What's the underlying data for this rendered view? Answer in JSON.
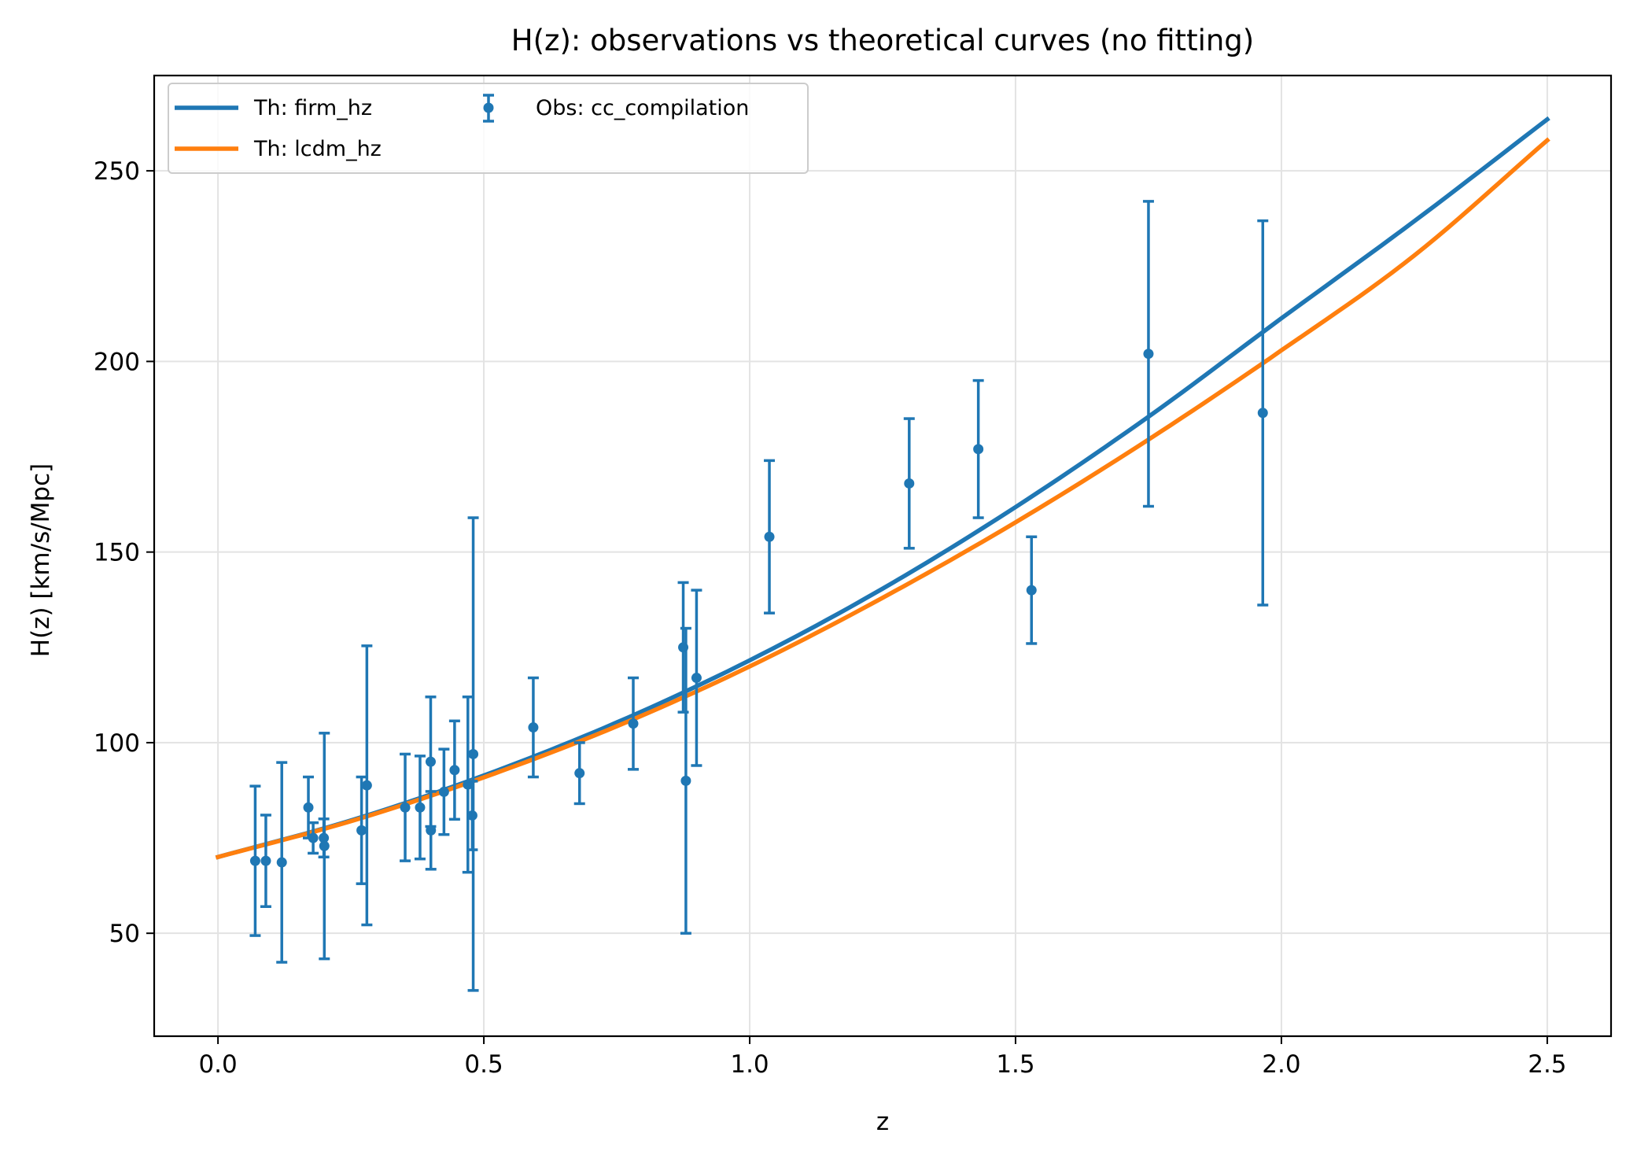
{
  "chart_data": {
    "type": "line",
    "title": "H(z): observations vs theoretical curves (no fitting)",
    "xlabel": "z",
    "ylabel": "H(z) [km/s/Mpc]",
    "xlim": [
      -0.12,
      2.62
    ],
    "ylim": [
      23,
      275
    ],
    "xticks": [
      0.0,
      0.5,
      1.0,
      1.5,
      2.0,
      2.5
    ],
    "xtick_labels": [
      "0.0",
      "0.5",
      "1.0",
      "1.5",
      "2.0",
      "2.5"
    ],
    "yticks": [
      50,
      100,
      150,
      200,
      250
    ],
    "ytick_labels": [
      "50",
      "100",
      "150",
      "200",
      "250"
    ],
    "grid": true,
    "legend_placement": "top-left",
    "series": [
      {
        "name": "Th: firm_hz",
        "kind": "line",
        "color": "#1f77b4",
        "x": [
          0.0,
          0.25,
          0.5,
          0.75,
          1.0,
          1.25,
          1.5,
          1.75,
          2.0,
          2.25,
          2.5
        ],
        "y": [
          70.0,
          79.6,
          91.4,
          105.3,
          121.6,
          140.4,
          161.8,
          185.5,
          211.3,
          236.8,
          263.5
        ]
      },
      {
        "name": "Th: lcdm_hz",
        "kind": "line",
        "color": "#ff7f0e",
        "x": [
          0.0,
          0.25,
          0.5,
          0.75,
          1.0,
          1.25,
          1.5,
          1.75,
          2.0,
          2.25,
          2.5
        ],
        "y": [
          70.0,
          79.4,
          90.9,
          104.3,
          120.0,
          138.0,
          157.8,
          179.5,
          202.9,
          227.8,
          258.0
        ]
      },
      {
        "name": "Obs: cc_compilation",
        "kind": "errorbar",
        "color": "#1f77b4",
        "points": [
          {
            "x": 0.07,
            "y": 69.0,
            "err": 19.6
          },
          {
            "x": 0.09,
            "y": 69.0,
            "err": 12.0
          },
          {
            "x": 0.12,
            "y": 68.6,
            "err": 26.2
          },
          {
            "x": 0.17,
            "y": 83.0,
            "err": 8.0
          },
          {
            "x": 0.179,
            "y": 75.0,
            "err": 4.0
          },
          {
            "x": 0.199,
            "y": 75.0,
            "err": 5.0
          },
          {
            "x": 0.2,
            "y": 72.9,
            "err": 29.6
          },
          {
            "x": 0.27,
            "y": 77.0,
            "err": 14.0
          },
          {
            "x": 0.28,
            "y": 88.8,
            "err": 36.6
          },
          {
            "x": 0.352,
            "y": 83.0,
            "err": 14.0
          },
          {
            "x": 0.38,
            "y": 83.0,
            "err": 13.5
          },
          {
            "x": 0.4,
            "y": 95.0,
            "err": 17.0
          },
          {
            "x": 0.4004,
            "y": 77.0,
            "err": 10.2
          },
          {
            "x": 0.425,
            "y": 87.1,
            "err": 11.2
          },
          {
            "x": 0.445,
            "y": 92.8,
            "err": 12.9
          },
          {
            "x": 0.47,
            "y": 89.0,
            "err": 23.0
          },
          {
            "x": 0.4783,
            "y": 80.9,
            "err": 9.0
          },
          {
            "x": 0.48,
            "y": 97.0,
            "err": 62.0
          },
          {
            "x": 0.593,
            "y": 104.0,
            "err": 13.0
          },
          {
            "x": 0.68,
            "y": 92.0,
            "err": 8.0
          },
          {
            "x": 0.781,
            "y": 105.0,
            "err": 12.0
          },
          {
            "x": 0.875,
            "y": 125.0,
            "err": 17.0
          },
          {
            "x": 0.88,
            "y": 90.0,
            "err": 40.0
          },
          {
            "x": 0.9,
            "y": 117.0,
            "err": 23.0
          },
          {
            "x": 1.037,
            "y": 154.0,
            "err": 20.0
          },
          {
            "x": 1.3,
            "y": 168.0,
            "err": 17.0
          },
          {
            "x": 1.43,
            "y": 177.0,
            "err": 18.0
          },
          {
            "x": 1.53,
            "y": 140.0,
            "err": 14.0
          },
          {
            "x": 1.75,
            "y": 202.0,
            "err": 40.0
          },
          {
            "x": 1.965,
            "y": 186.5,
            "err": 50.4
          }
        ]
      }
    ]
  }
}
